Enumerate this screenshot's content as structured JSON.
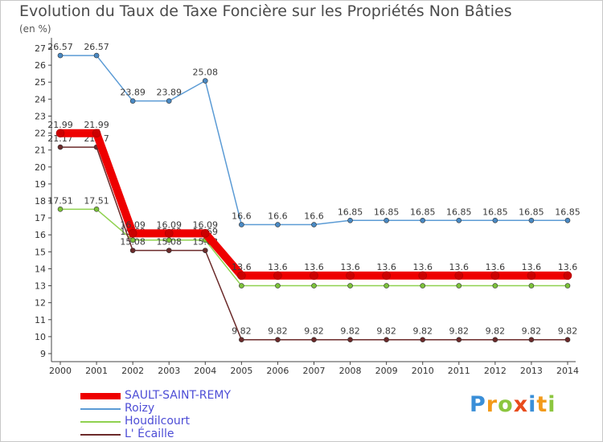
{
  "chart_data": {
    "type": "line",
    "title": "Evolution du Taux de Taxe Foncière sur les Propriétés Non Bâties",
    "unit_label": "(en %)",
    "xlabel": "",
    "ylabel": "(en %)",
    "ylim": [
      9,
      27
    ],
    "yticks": [
      9,
      10,
      11,
      12,
      13,
      14,
      15,
      16,
      17,
      18,
      19,
      20,
      21,
      22,
      23,
      24,
      25,
      26,
      27
    ],
    "categories": [
      "2000",
      "2001",
      "2002",
      "2003",
      "2004",
      "2005",
      "2006",
      "2007",
      "2008",
      "2009",
      "2010",
      "2011",
      "2012",
      "2013",
      "2014"
    ],
    "grid": false,
    "legend_position": "bottom-left",
    "series": [
      {
        "name": "Roizy",
        "color": "#5b9bd5",
        "marker_color": "#4a8ac4",
        "values": [
          26.57,
          26.57,
          23.89,
          23.89,
          25.08,
          16.6,
          16.6,
          16.6,
          16.85,
          16.85,
          16.85,
          16.85,
          16.85,
          16.85,
          16.85
        ],
        "labels": [
          "26.57",
          "26.57",
          "23.89",
          "23.89",
          "25.08",
          "16.6",
          "16.6",
          "16.6",
          "16.85",
          "16.85",
          "16.85",
          "16.85",
          "16.85",
          "16.85",
          "16.85"
        ]
      },
      {
        "name": "Houdilcourt",
        "color": "#8fd14f",
        "marker_color": "#7cc23a",
        "values": [
          17.51,
          17.51,
          15.69,
          15.69,
          15.69,
          13.0,
          13.0,
          13.0,
          13.0,
          13.0,
          13.0,
          13.0,
          13.0,
          13.0,
          13.0
        ],
        "labels": [
          "17.51",
          "17.51",
          "15.69",
          "15.69",
          "15.69",
          "",
          "",
          "",
          "",
          "",
          "",
          "",
          "",
          "",
          ""
        ]
      },
      {
        "name": "L' Écaille",
        "color": "#6b2a2a",
        "marker_color": "#6b2a2a",
        "values": [
          21.17,
          21.17,
          15.08,
          15.08,
          15.08,
          9.82,
          9.82,
          9.82,
          9.82,
          9.82,
          9.82,
          9.82,
          9.82,
          9.82,
          9.82
        ],
        "labels": [
          "21.17",
          "21.17",
          "15.08",
          "15.08",
          "15.08",
          "9.82",
          "9.82",
          "9.82",
          "9.82",
          "9.82",
          "9.82",
          "9.82",
          "9.82",
          "9.82",
          "9.82"
        ]
      },
      {
        "name": "SAULT-SAINT-REMY",
        "color": "#ee0000",
        "marker_color": "#cc0000",
        "values": [
          21.99,
          21.99,
          16.09,
          16.09,
          16.09,
          13.6,
          13.6,
          13.6,
          13.6,
          13.6,
          13.6,
          13.6,
          13.6,
          13.6,
          13.6
        ],
        "labels": [
          "21.99",
          "21.99",
          "16.09",
          "16.09",
          "16.09",
          "13.6",
          "13.6",
          "13.6",
          "13.6",
          "13.6",
          "13.6",
          "13.6",
          "13.6",
          "13.6",
          "13.6"
        ]
      }
    ],
    "legend": [
      "SAULT-SAINT-REMY",
      "Roizy",
      "Houdilcourt",
      "L' Écaille"
    ]
  },
  "logo": {
    "letters": [
      "P",
      "r",
      "o",
      "x",
      "i",
      "t",
      "i"
    ],
    "colors": [
      "#3a8fd8",
      "#f29a1a",
      "#8cc63f",
      "#e84b1c",
      "#3a8fd8",
      "#f29a1a",
      "#8cc63f"
    ]
  }
}
